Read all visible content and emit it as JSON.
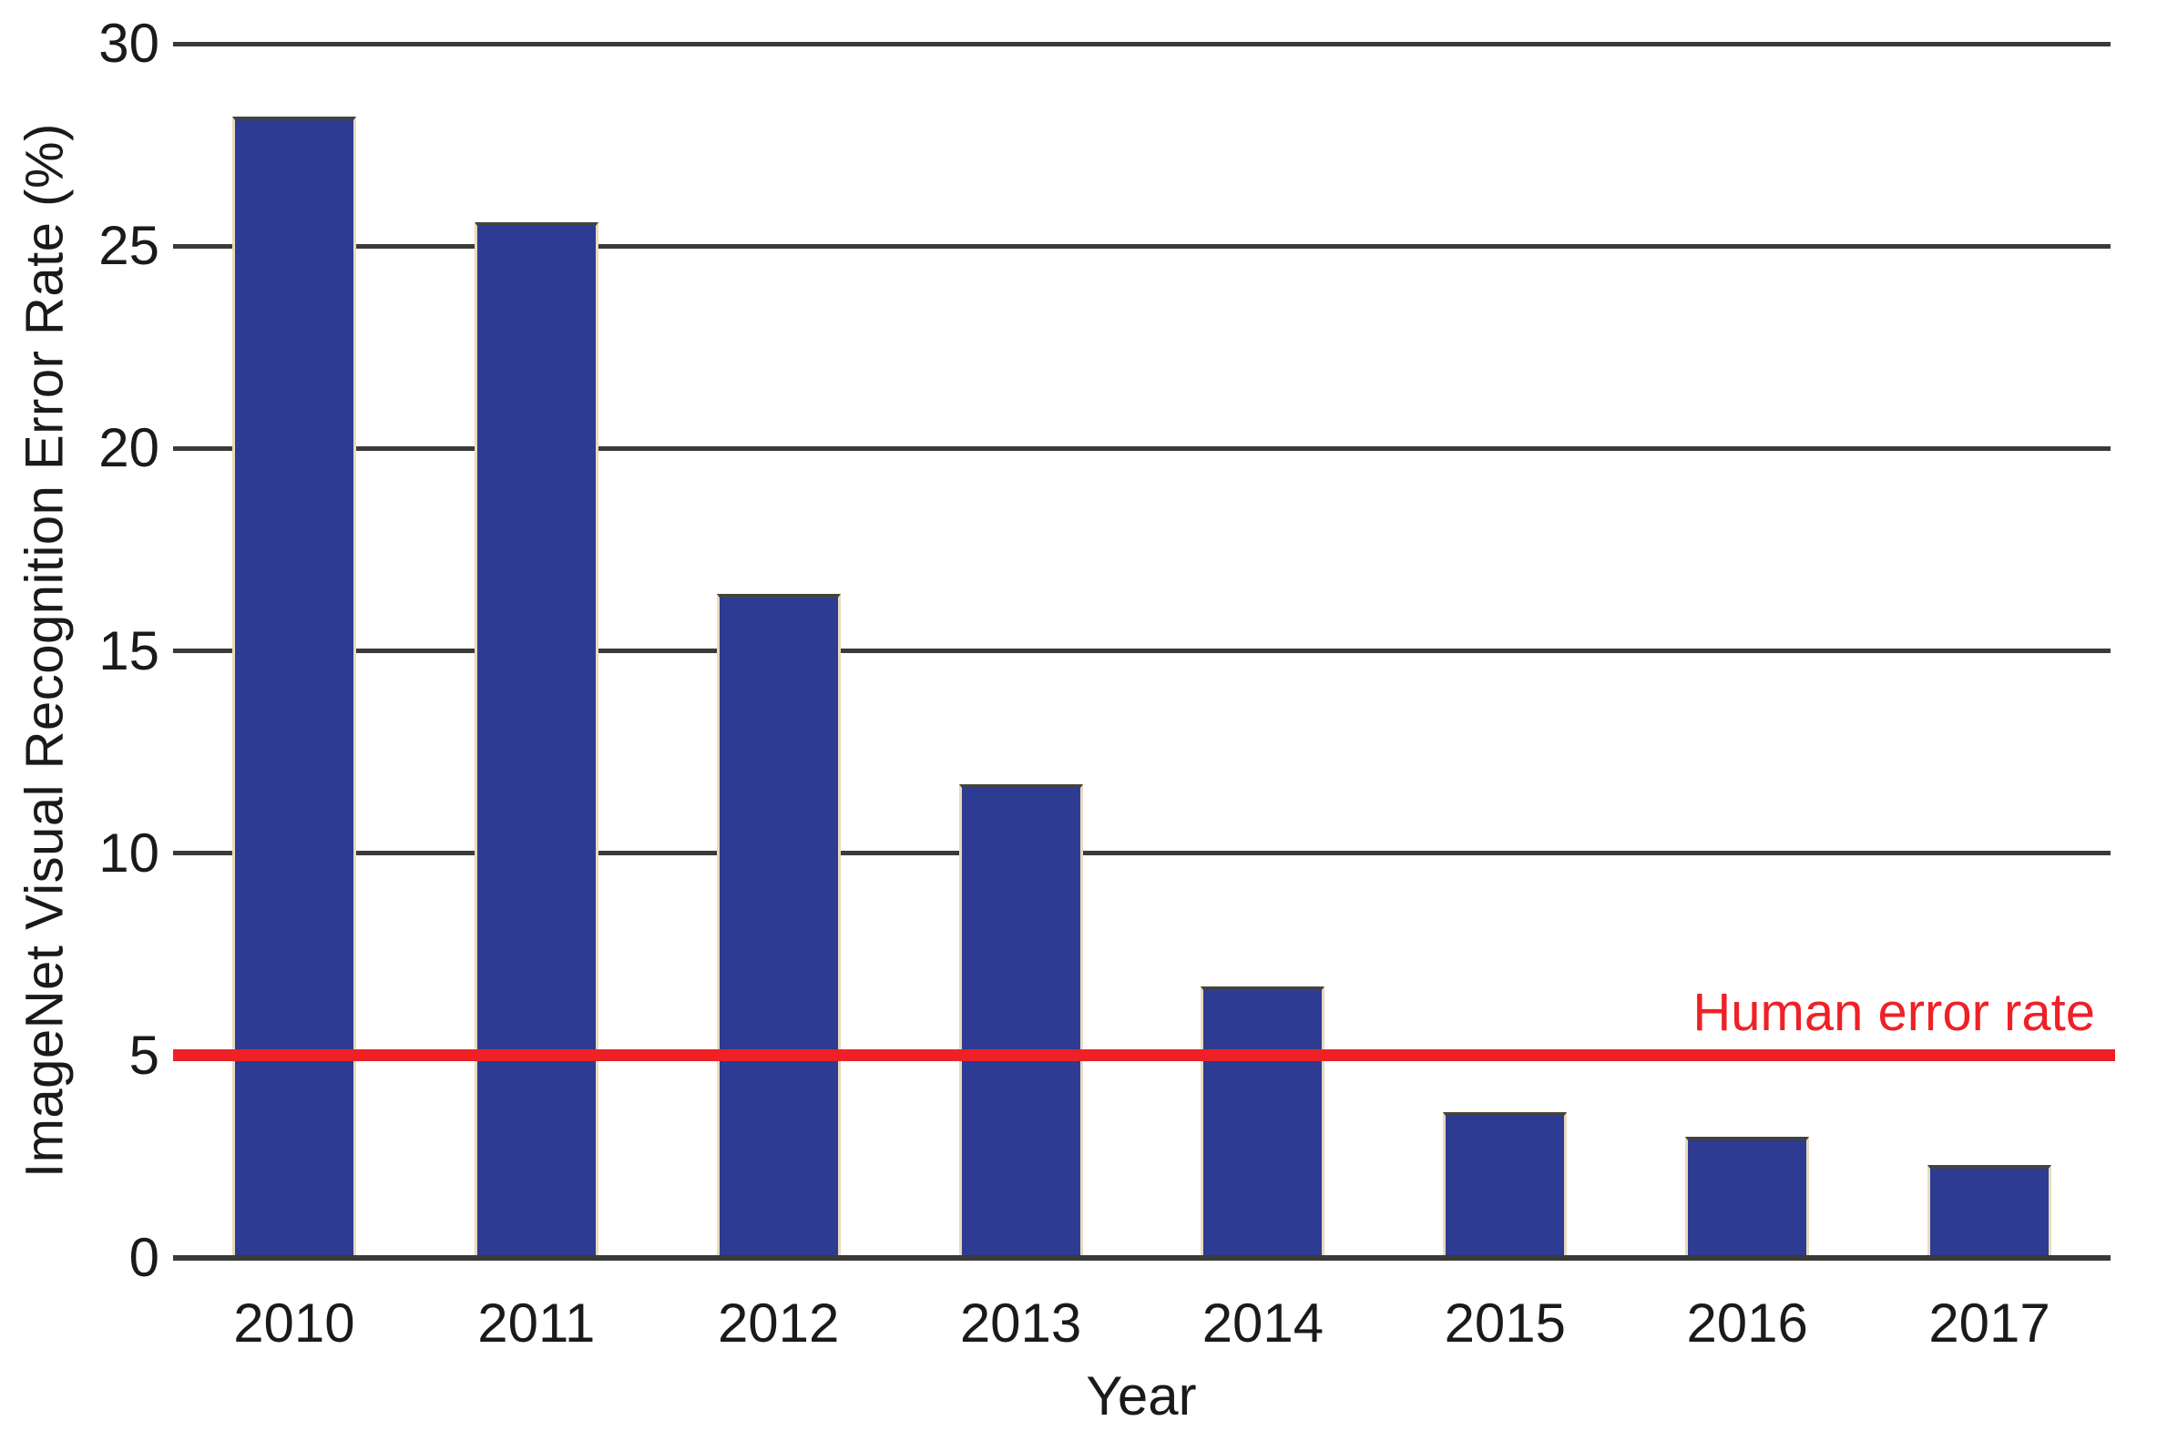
{
  "chart_data": {
    "type": "bar",
    "title": "",
    "ylabel": "ImageNet Visual Recognition Error Rate (%)",
    "xlabel": "Year",
    "categories": [
      "2010",
      "2011",
      "2012",
      "2013",
      "2014",
      "2015",
      "2016",
      "2017"
    ],
    "values": [
      28.2,
      25.6,
      16.4,
      11.7,
      6.7,
      3.6,
      3.0,
      2.3
    ],
    "ylim": [
      0,
      30
    ],
    "ytick_values": [
      30,
      25,
      20,
      15,
      10,
      5,
      0
    ],
    "gridline_values": [
      30,
      25,
      20,
      15,
      10
    ],
    "grid": true,
    "legend": "none",
    "reference_line": {
      "label": "Human error rate",
      "value": 5,
      "color": "#ee2127"
    },
    "colors": {
      "bar_fill": "#2d3c92",
      "bar_edge": "#e7dbbd",
      "bar_top_edge": "#45423c",
      "grid": "#3a3a38",
      "text": "#1a1a1a"
    }
  }
}
